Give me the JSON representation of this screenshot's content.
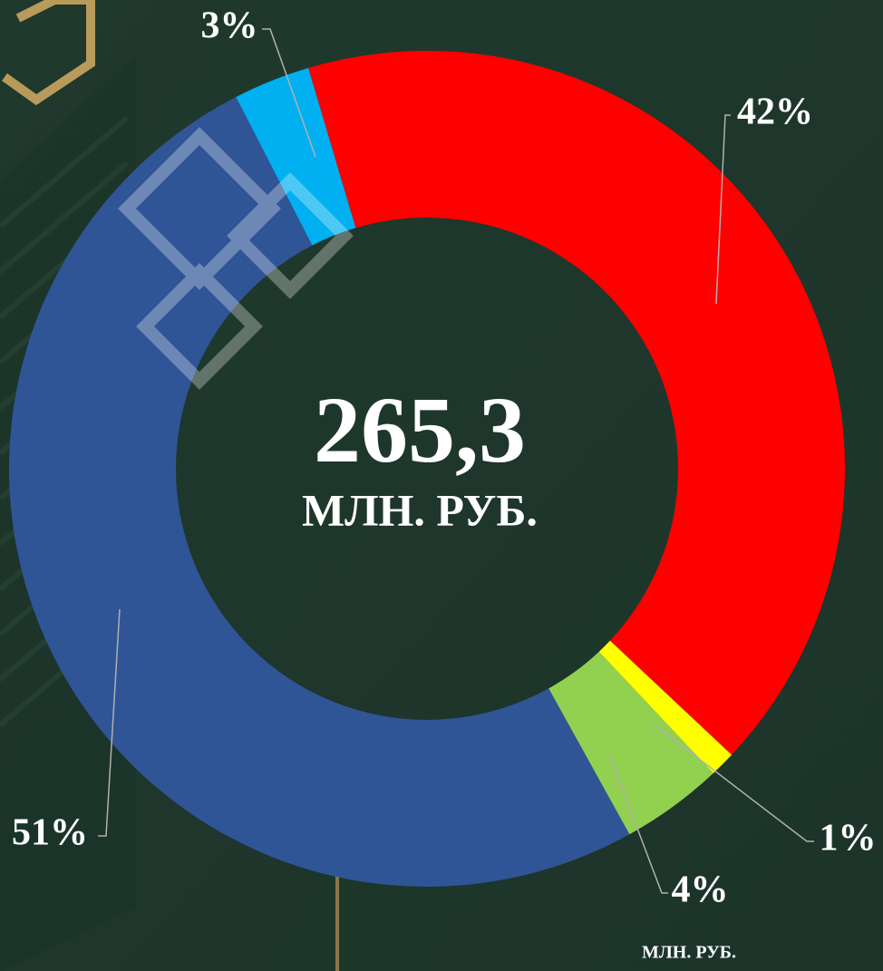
{
  "chart_data": {
    "type": "donut",
    "center_value": "265,3",
    "center_unit": "МЛН. РУБ.",
    "footnote": "МЛН. РУБ.",
    "series": [
      {
        "values": [
          42,
          1,
          4,
          51,
          3
        ],
        "value_labels": [
          "42%",
          "1%",
          "4%",
          "51%",
          "3%"
        ],
        "colors": [
          "#ff0000",
          "#ffff00",
          "#92d050",
          "#2f5597",
          "#00b0f0"
        ]
      }
    ]
  }
}
